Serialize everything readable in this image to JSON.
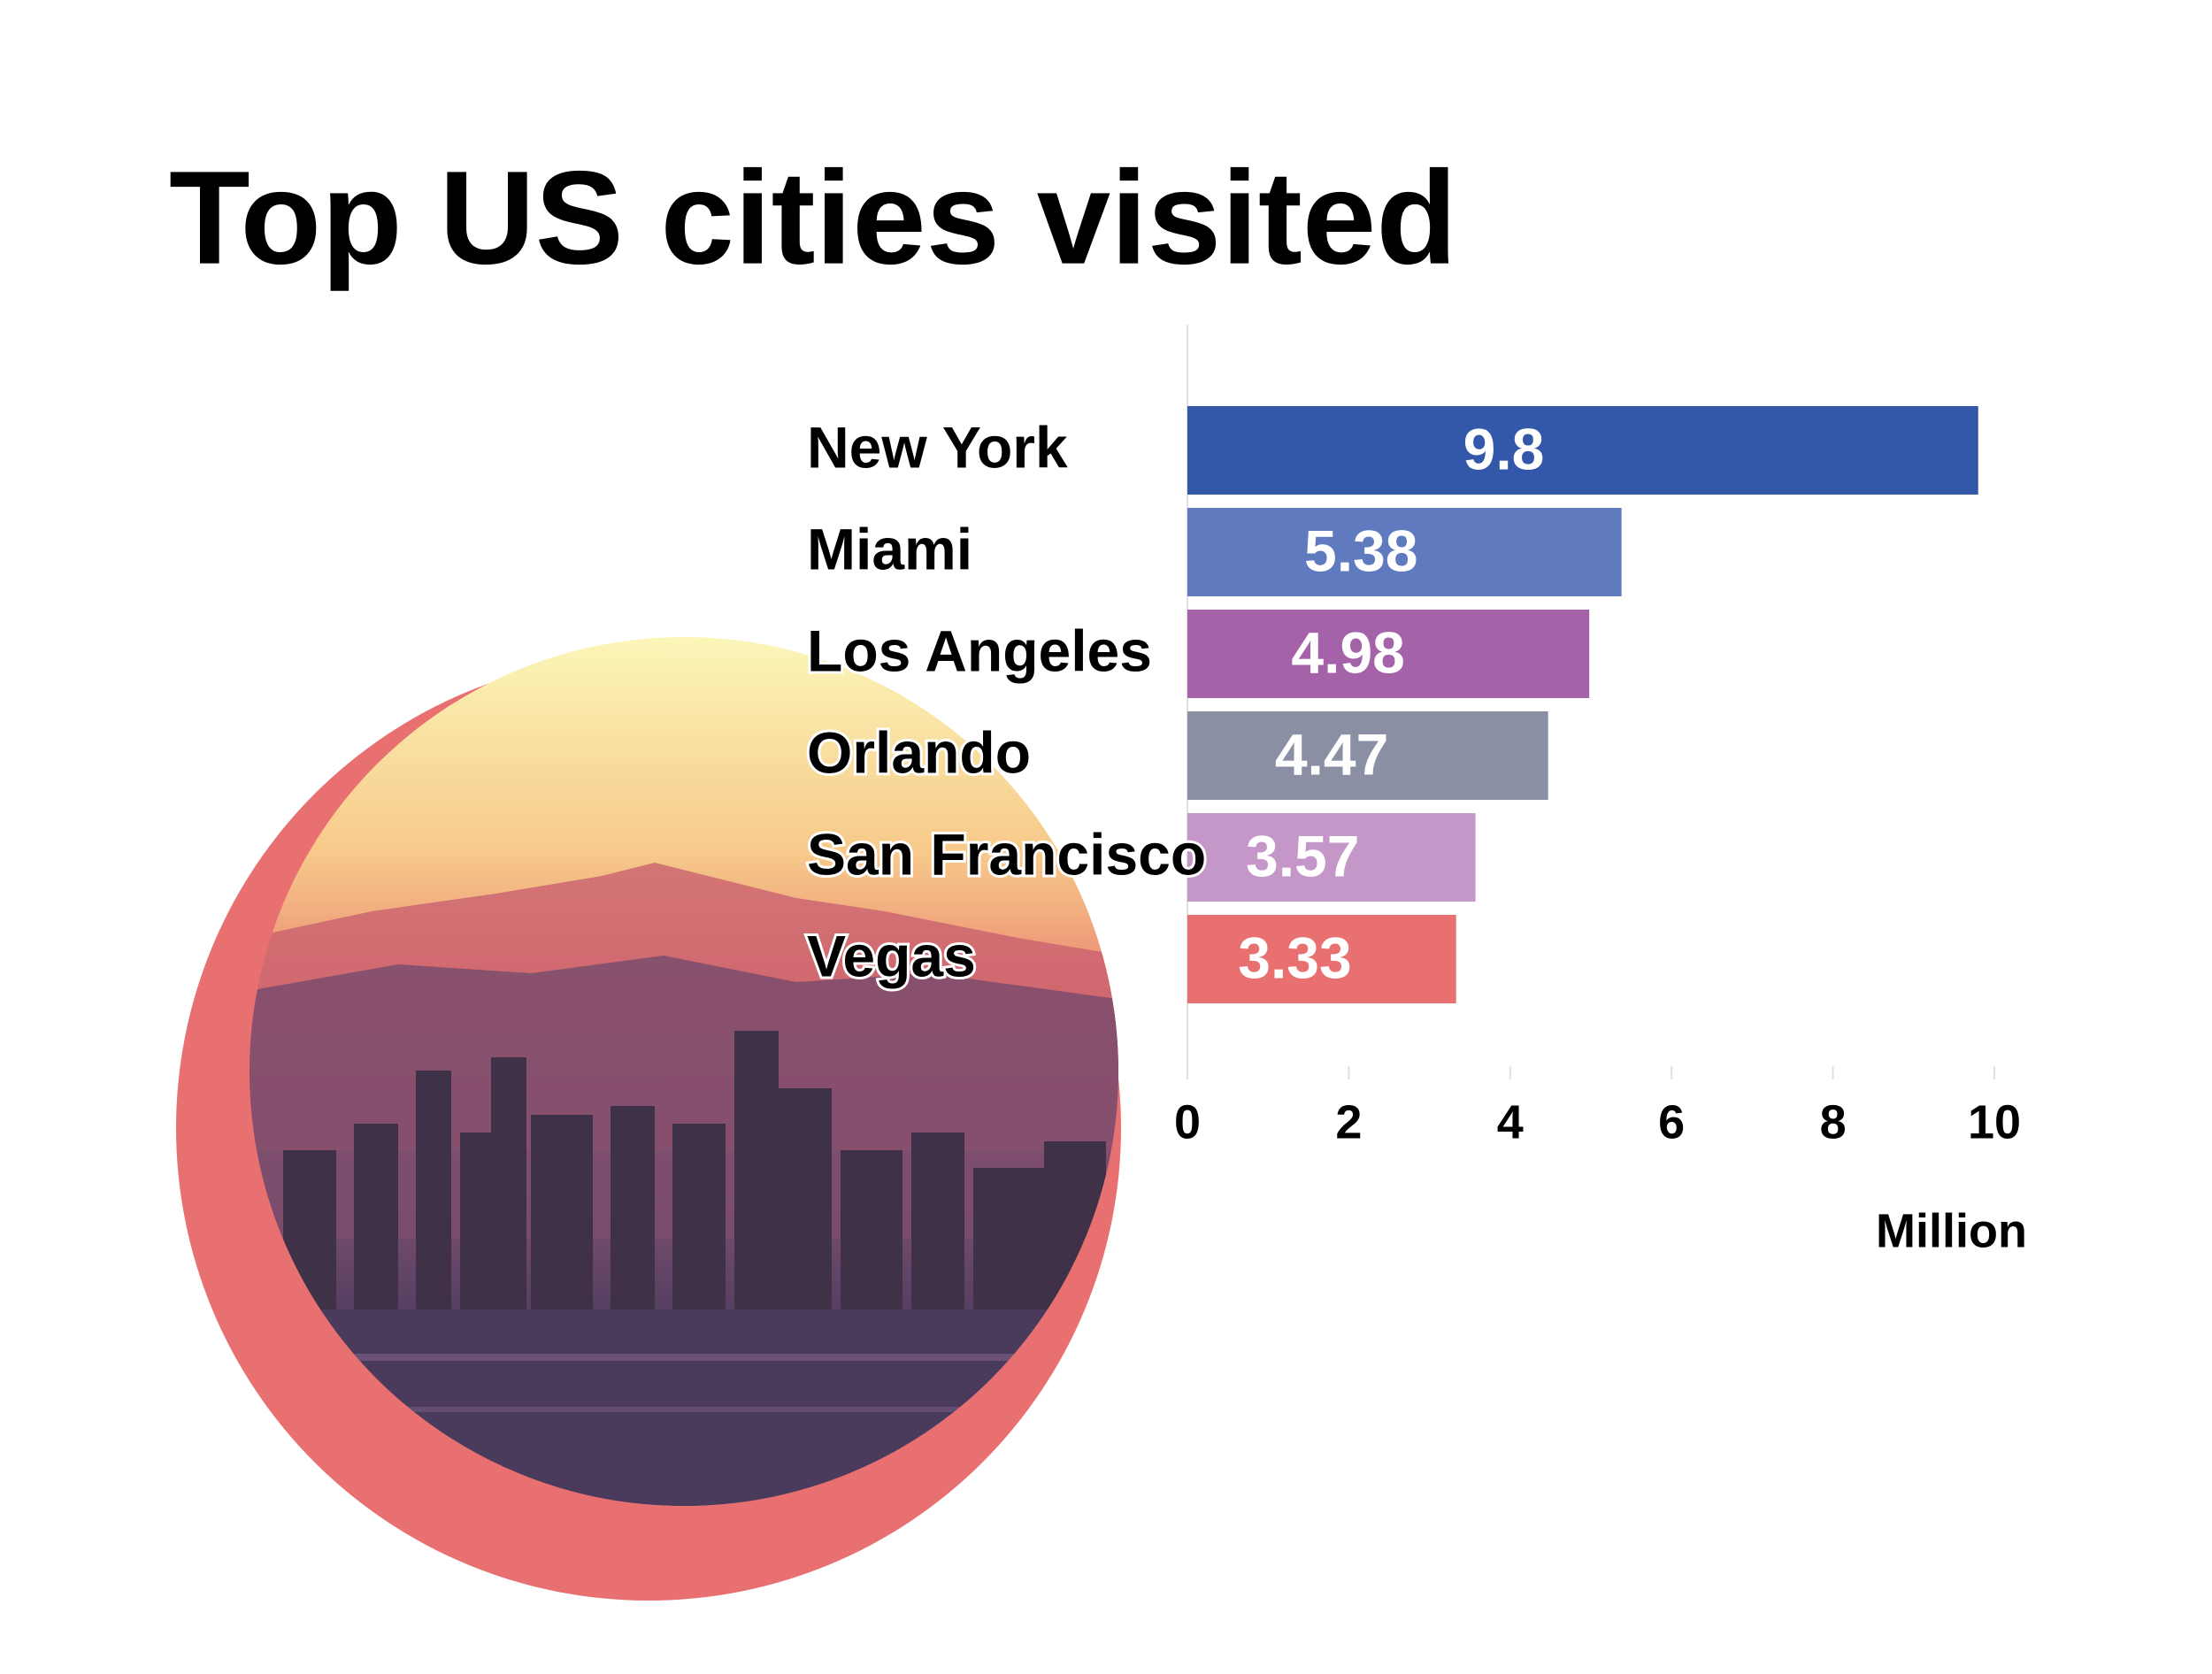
{
  "chart_data": {
    "type": "bar",
    "orientation": "horizontal",
    "title": "Top US cities visited",
    "categories": [
      "New York",
      "Miami",
      "Los Angeles",
      "Orlando",
      "San Francisco",
      "Vegas"
    ],
    "values": [
      9.8,
      5.38,
      4.98,
      4.47,
      3.57,
      3.33
    ],
    "colors": [
      "#3358a9",
      "#5f7abf",
      "#a463a8",
      "#8a8fa3",
      "#c596c8",
      "#e87070"
    ],
    "xlim": [
      0,
      10
    ],
    "xticks": [
      0,
      2,
      4,
      6,
      8,
      10
    ],
    "xlabel": "Million"
  }
}
